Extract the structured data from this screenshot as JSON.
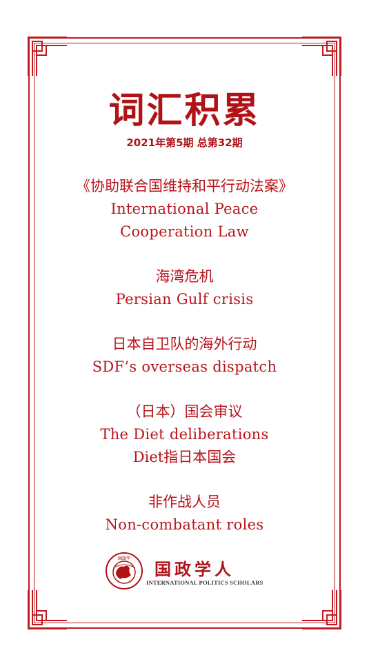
{
  "header": {
    "title": "词汇积累",
    "issue": "2021年第5期 总第32期"
  },
  "terms": [
    {
      "lines": [
        "《协助联合国维持和平行动法案》",
        "International Peace",
        "Cooperation Law"
      ]
    },
    {
      "lines": [
        "海湾危机",
        "Persian Gulf crisis"
      ]
    },
    {
      "lines": [
        "日本自卫队的海外行动",
        "SDF’s overseas dispatch"
      ]
    },
    {
      "lines": [
        "（日本）国会审议",
        "The Diet deliberations",
        "Diet指日本国会"
      ]
    },
    {
      "lines": [
        "非作战人员",
        "Non-combatant roles"
      ]
    }
  ],
  "logo": {
    "name_cn": "国政学人",
    "name_en": "INTERNATIONAL POLITICS SCHOLARS",
    "emblem_text": "国政学"
  },
  "colors": {
    "accent": "#b8141b",
    "border": "#c01a20"
  }
}
